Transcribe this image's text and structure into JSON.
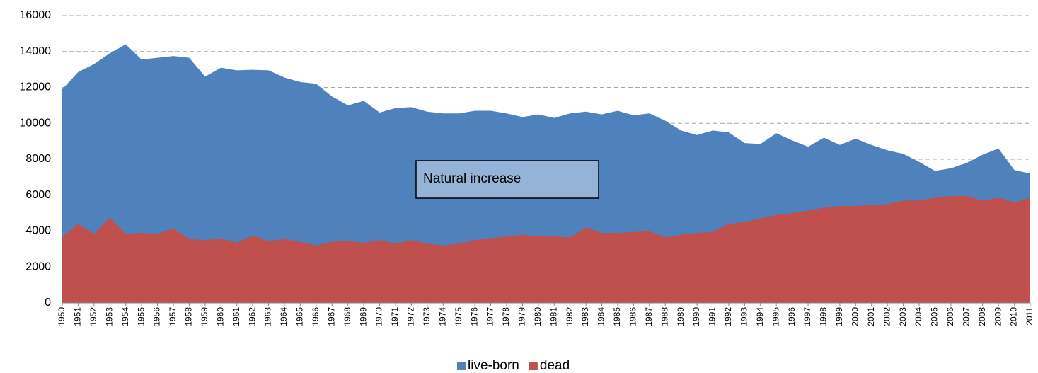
{
  "chart_data": {
    "type": "area",
    "categories": [
      "1950",
      "1951",
      "1952",
      "1953",
      "1954",
      "1955",
      "1956",
      "1957",
      "1958",
      "1959",
      "1960",
      "1961",
      "1962",
      "1963",
      "1964",
      "1965",
      "1966",
      "1967",
      "1968",
      "1969",
      "1970",
      "1971",
      "1972",
      "1973",
      "1974",
      "1975",
      "1976",
      "1977",
      "1978",
      "1979",
      "1980",
      "1981",
      "1982",
      "1983",
      "1984",
      "1985",
      "1986",
      "1987",
      "1988",
      "1989",
      "1990",
      "1991",
      "1992",
      "1993",
      "1994",
      "1995",
      "1996",
      "1997",
      "1998",
      "1999",
      "2000",
      "2001",
      "2002",
      "2003",
      "2004",
      "2005",
      "2006",
      "2007",
      "2008",
      "2009",
      "2010",
      "2011"
    ],
    "series": [
      {
        "name": "live-born",
        "color": "#4f81bd",
        "values": [
          11900,
          12850,
          13300,
          13900,
          14400,
          13550,
          13650,
          13750,
          13650,
          12600,
          13100,
          12950,
          12980,
          12950,
          12550,
          12300,
          12200,
          11500,
          11000,
          11250,
          10600,
          10850,
          10900,
          10650,
          10550,
          10550,
          10700,
          10700,
          10550,
          10350,
          10500,
          10300,
          10550,
          10650,
          10500,
          10700,
          10450,
          10550,
          10150,
          9600,
          9350,
          9600,
          9500,
          8900,
          8850,
          9450,
          9050,
          8700,
          9200,
          8800,
          9150,
          8800,
          8500,
          8300,
          7850,
          7350,
          7500,
          7800,
          8250,
          8600,
          7400,
          7200
        ]
      },
      {
        "name": "dead",
        "color": "#c0504d",
        "values": [
          3700,
          4400,
          3850,
          4750,
          3850,
          3900,
          3850,
          4150,
          3550,
          3500,
          3600,
          3350,
          3750,
          3450,
          3550,
          3400,
          3200,
          3400,
          3450,
          3350,
          3500,
          3300,
          3500,
          3300,
          3200,
          3300,
          3500,
          3600,
          3700,
          3800,
          3700,
          3700,
          3650,
          4200,
          3900,
          3900,
          3950,
          4000,
          3650,
          3800,
          3900,
          3950,
          4400,
          4500,
          4700,
          4900,
          5000,
          5150,
          5300,
          5400,
          5400,
          5450,
          5500,
          5700,
          5700,
          5850,
          5950,
          5950,
          5700,
          5850,
          5600,
          5850
        ]
      }
    ],
    "annotations": [
      "Natural increase"
    ],
    "ylim": [
      0,
      16000
    ],
    "yticks": [
      0,
      2000,
      4000,
      6000,
      8000,
      10000,
      12000,
      14000,
      16000
    ],
    "grid": true,
    "legend": "bottom"
  }
}
